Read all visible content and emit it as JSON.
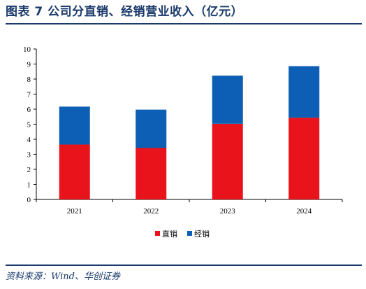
{
  "title": "图表 7   公司分直销、经销营业收入（亿元）",
  "source": "资料来源：Wind、华创证券",
  "chart_data": {
    "type": "bar",
    "stacked": true,
    "categories": [
      "2021",
      "2022",
      "2023",
      "2024"
    ],
    "series": [
      {
        "name": "直销",
        "color": "#e8131b",
        "values": [
          3.65,
          3.42,
          5.03,
          5.43
        ]
      },
      {
        "name": "经销",
        "color": "#0c5fb4",
        "values": [
          2.52,
          2.55,
          3.2,
          3.43
        ]
      }
    ],
    "ylim": [
      0,
      10
    ],
    "yticks": [
      0,
      1,
      2,
      3,
      4,
      5,
      6,
      7,
      8,
      9,
      10
    ],
    "grid": false,
    "legend": "bottom-center"
  }
}
